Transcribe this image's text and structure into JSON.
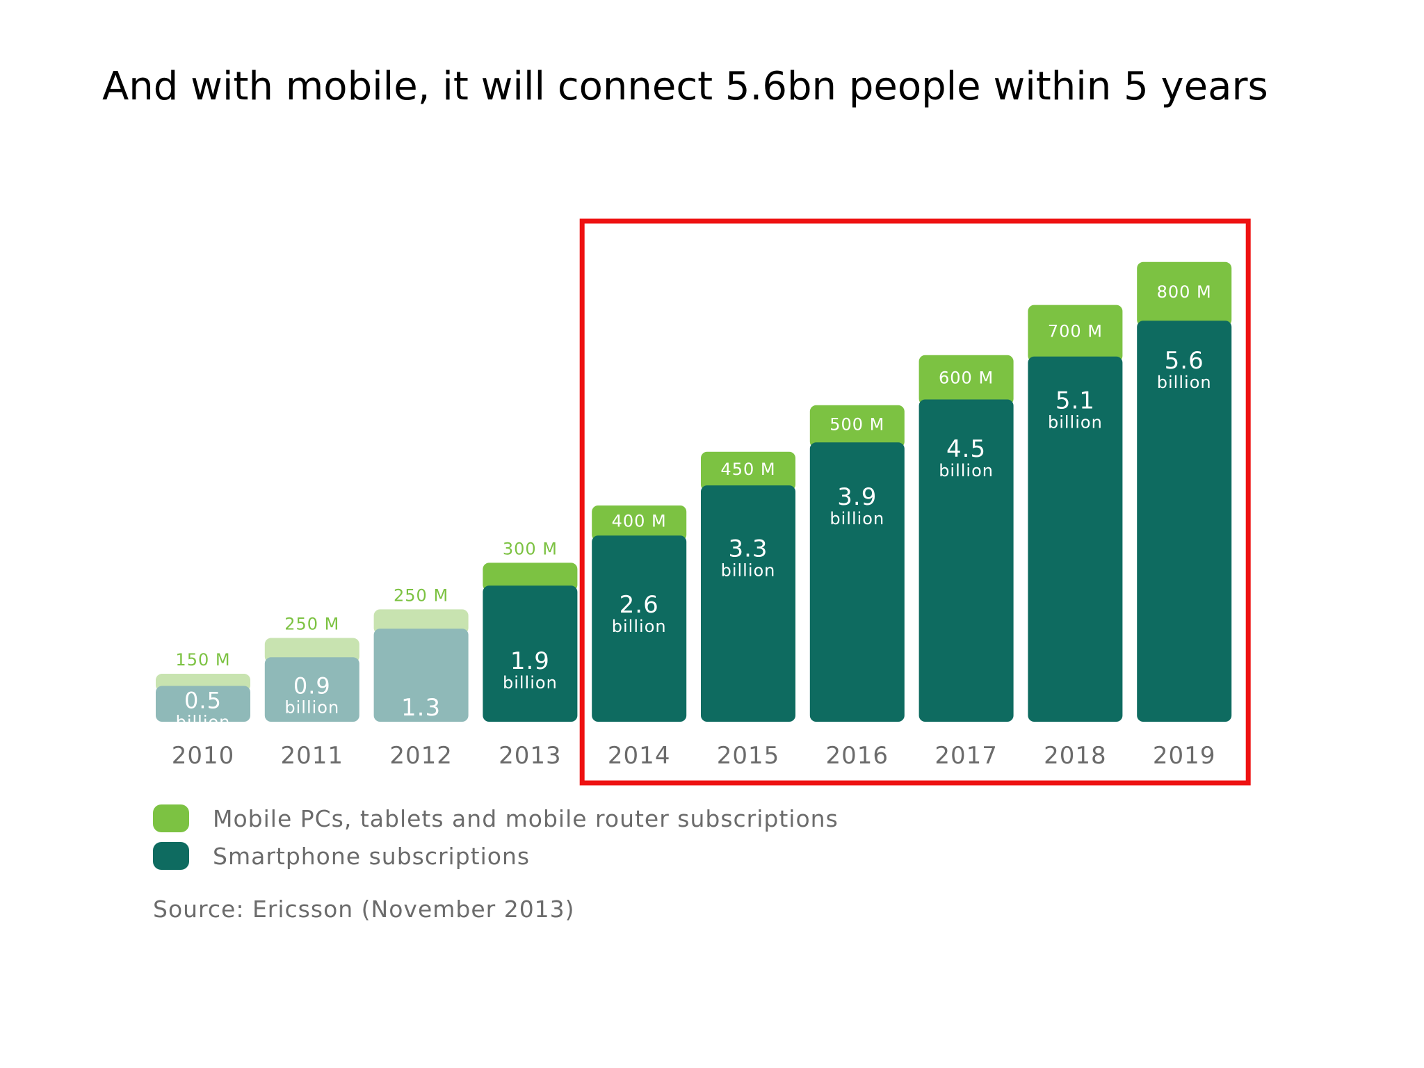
{
  "slide": {
    "title": "And with mobile, it will connect 5.6bn people within 5 years"
  },
  "chart_data": {
    "type": "bar",
    "stacked": true,
    "categories": [
      "2010",
      "2011",
      "2012",
      "2013",
      "2014",
      "2015",
      "2016",
      "2017",
      "2018",
      "2019"
    ],
    "series": [
      {
        "name": "Smartphone subscriptions",
        "unit": "billion",
        "values": [
          0.5,
          0.9,
          1.3,
          1.9,
          2.6,
          3.3,
          3.9,
          4.5,
          5.1,
          5.6
        ],
        "labels": [
          "0.5",
          "0.9",
          "1.3",
          "1.9",
          "2.6",
          "3.3",
          "3.9",
          "4.5",
          "5.1",
          "5.6"
        ],
        "unit_label": "billion",
        "color": "#0e6b60",
        "color_muted": "#8fb9b8"
      },
      {
        "name": "Mobile PCs, tablets and mobile router subscriptions",
        "unit": "million",
        "values": [
          150,
          250,
          250,
          300,
          400,
          450,
          500,
          600,
          700,
          800
        ],
        "labels": [
          "150 M",
          "250 M",
          "250 M",
          "300 M",
          "400 M",
          "450 M",
          "500 M",
          "600 M",
          "700 M",
          "800 M"
        ],
        "color": "#7cc242",
        "color_muted": "#c8e3b0"
      }
    ],
    "muted_categories": [
      "2010",
      "2011",
      "2012"
    ],
    "highlight": {
      "from": "2014",
      "to": "2019",
      "color": "#ee1111"
    },
    "legend": [
      "Mobile PCs, tablets and mobile router subscriptions",
      "Smartphone subscriptions"
    ],
    "source": "Source: Ericsson (November 2013)",
    "colors": {
      "label_text": "#ffffff",
      "axis_text": "#6b6b6b",
      "muted_top_text": "#8fb9b8"
    }
  }
}
